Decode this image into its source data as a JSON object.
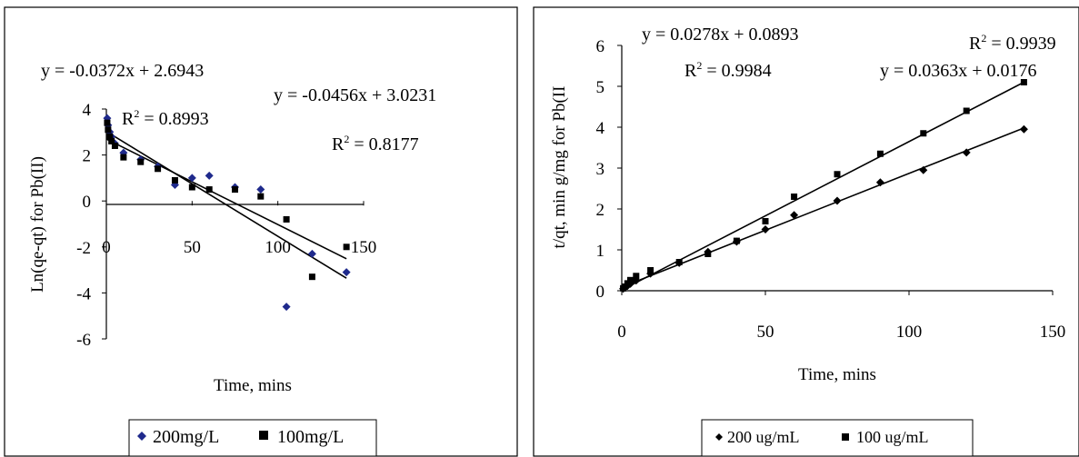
{
  "chart_data": [
    {
      "type": "scatter",
      "xlabel": "Time, mins",
      "ylabel": "Ln(qe-qt) for Pb(II)",
      "xlim": [
        0,
        150
      ],
      "ylim": [
        -6,
        4
      ],
      "x_ticks": [
        "0",
        "50",
        "100",
        "150"
      ],
      "y_ticks": [
        "4",
        "2",
        "0",
        "-2",
        "-4",
        "-6"
      ],
      "legend_position": "bottom",
      "series": [
        {
          "name": "200mg/L",
          "marker": "diamond",
          "color": "#1f2a8c",
          "x": [
            0.5,
            1,
            2,
            3,
            5,
            10,
            20,
            30,
            40,
            50,
            60,
            75,
            90,
            105,
            120,
            140
          ],
          "y": [
            3.6,
            3.3,
            3.0,
            2.8,
            2.5,
            2.1,
            1.8,
            1.5,
            0.7,
            1.0,
            1.1,
            0.6,
            0.5,
            -4.6,
            -2.3,
            -3.1
          ]
        },
        {
          "name": "100mg/L",
          "marker": "square",
          "color": "#000000",
          "x": [
            0.5,
            1,
            2,
            3,
            5,
            10,
            20,
            30,
            40,
            50,
            60,
            75,
            90,
            105,
            120,
            140
          ],
          "y": [
            3.4,
            3.1,
            2.8,
            2.6,
            2.4,
            1.9,
            1.7,
            1.4,
            0.9,
            0.6,
            0.5,
            0.5,
            0.2,
            -0.8,
            -3.3,
            -2.0
          ]
        }
      ],
      "trendlines": [
        {
          "slope": -0.0372,
          "intercept": 2.6943,
          "x_range": [
            0,
            140
          ]
        },
        {
          "slope": -0.0456,
          "intercept": 3.0231,
          "x_range": [
            0,
            140
          ]
        }
      ],
      "annotations": [
        "y = -0.0372x + 2.6943",
        "R² = 0.8993",
        "y = -0.0456x + 3.0231",
        "R² = 0.8177"
      ]
    },
    {
      "type": "scatter",
      "xlabel": "Time, mins",
      "ylabel": "t/qt, min g/mg for Pb(II",
      "xlim": [
        0,
        150
      ],
      "ylim": [
        0,
        6
      ],
      "x_ticks": [
        "0",
        "50",
        "100",
        "150"
      ],
      "y_ticks": [
        "6",
        "5",
        "4",
        "3",
        "2",
        "1",
        "0"
      ],
      "legend_position": "bottom",
      "series": [
        {
          "name": "200 ug/mL",
          "marker": "diamond",
          "color": "#000000",
          "x": [
            0.5,
            1,
            2,
            3,
            5,
            10,
            20,
            30,
            40,
            50,
            60,
            75,
            90,
            105,
            120,
            140
          ],
          "y": [
            0.05,
            0.08,
            0.12,
            0.17,
            0.25,
            0.42,
            0.68,
            0.95,
            1.2,
            1.5,
            1.85,
            2.2,
            2.65,
            2.95,
            3.38,
            3.95
          ]
        },
        {
          "name": "100 ug/mL",
          "marker": "square",
          "color": "#000000",
          "x": [
            0.5,
            1,
            2,
            3,
            5,
            10,
            20,
            30,
            40,
            50,
            60,
            75,
            90,
            105,
            120,
            140
          ],
          "y": [
            0.06,
            0.1,
            0.18,
            0.26,
            0.36,
            0.5,
            0.7,
            0.9,
            1.22,
            1.7,
            2.3,
            2.85,
            3.35,
            3.85,
            4.4,
            5.1
          ]
        }
      ],
      "trendlines": [
        {
          "slope": 0.0278,
          "intercept": 0.0893,
          "x_range": [
            0,
            140
          ]
        },
        {
          "slope": 0.0363,
          "intercept": 0.0176,
          "x_range": [
            0,
            140
          ]
        }
      ],
      "annotations": [
        "y = 0.0278x + 0.0893",
        "R² = 0.9984",
        "R² = 0.9939",
        "y = 0.0363x + 0.0176"
      ]
    }
  ]
}
